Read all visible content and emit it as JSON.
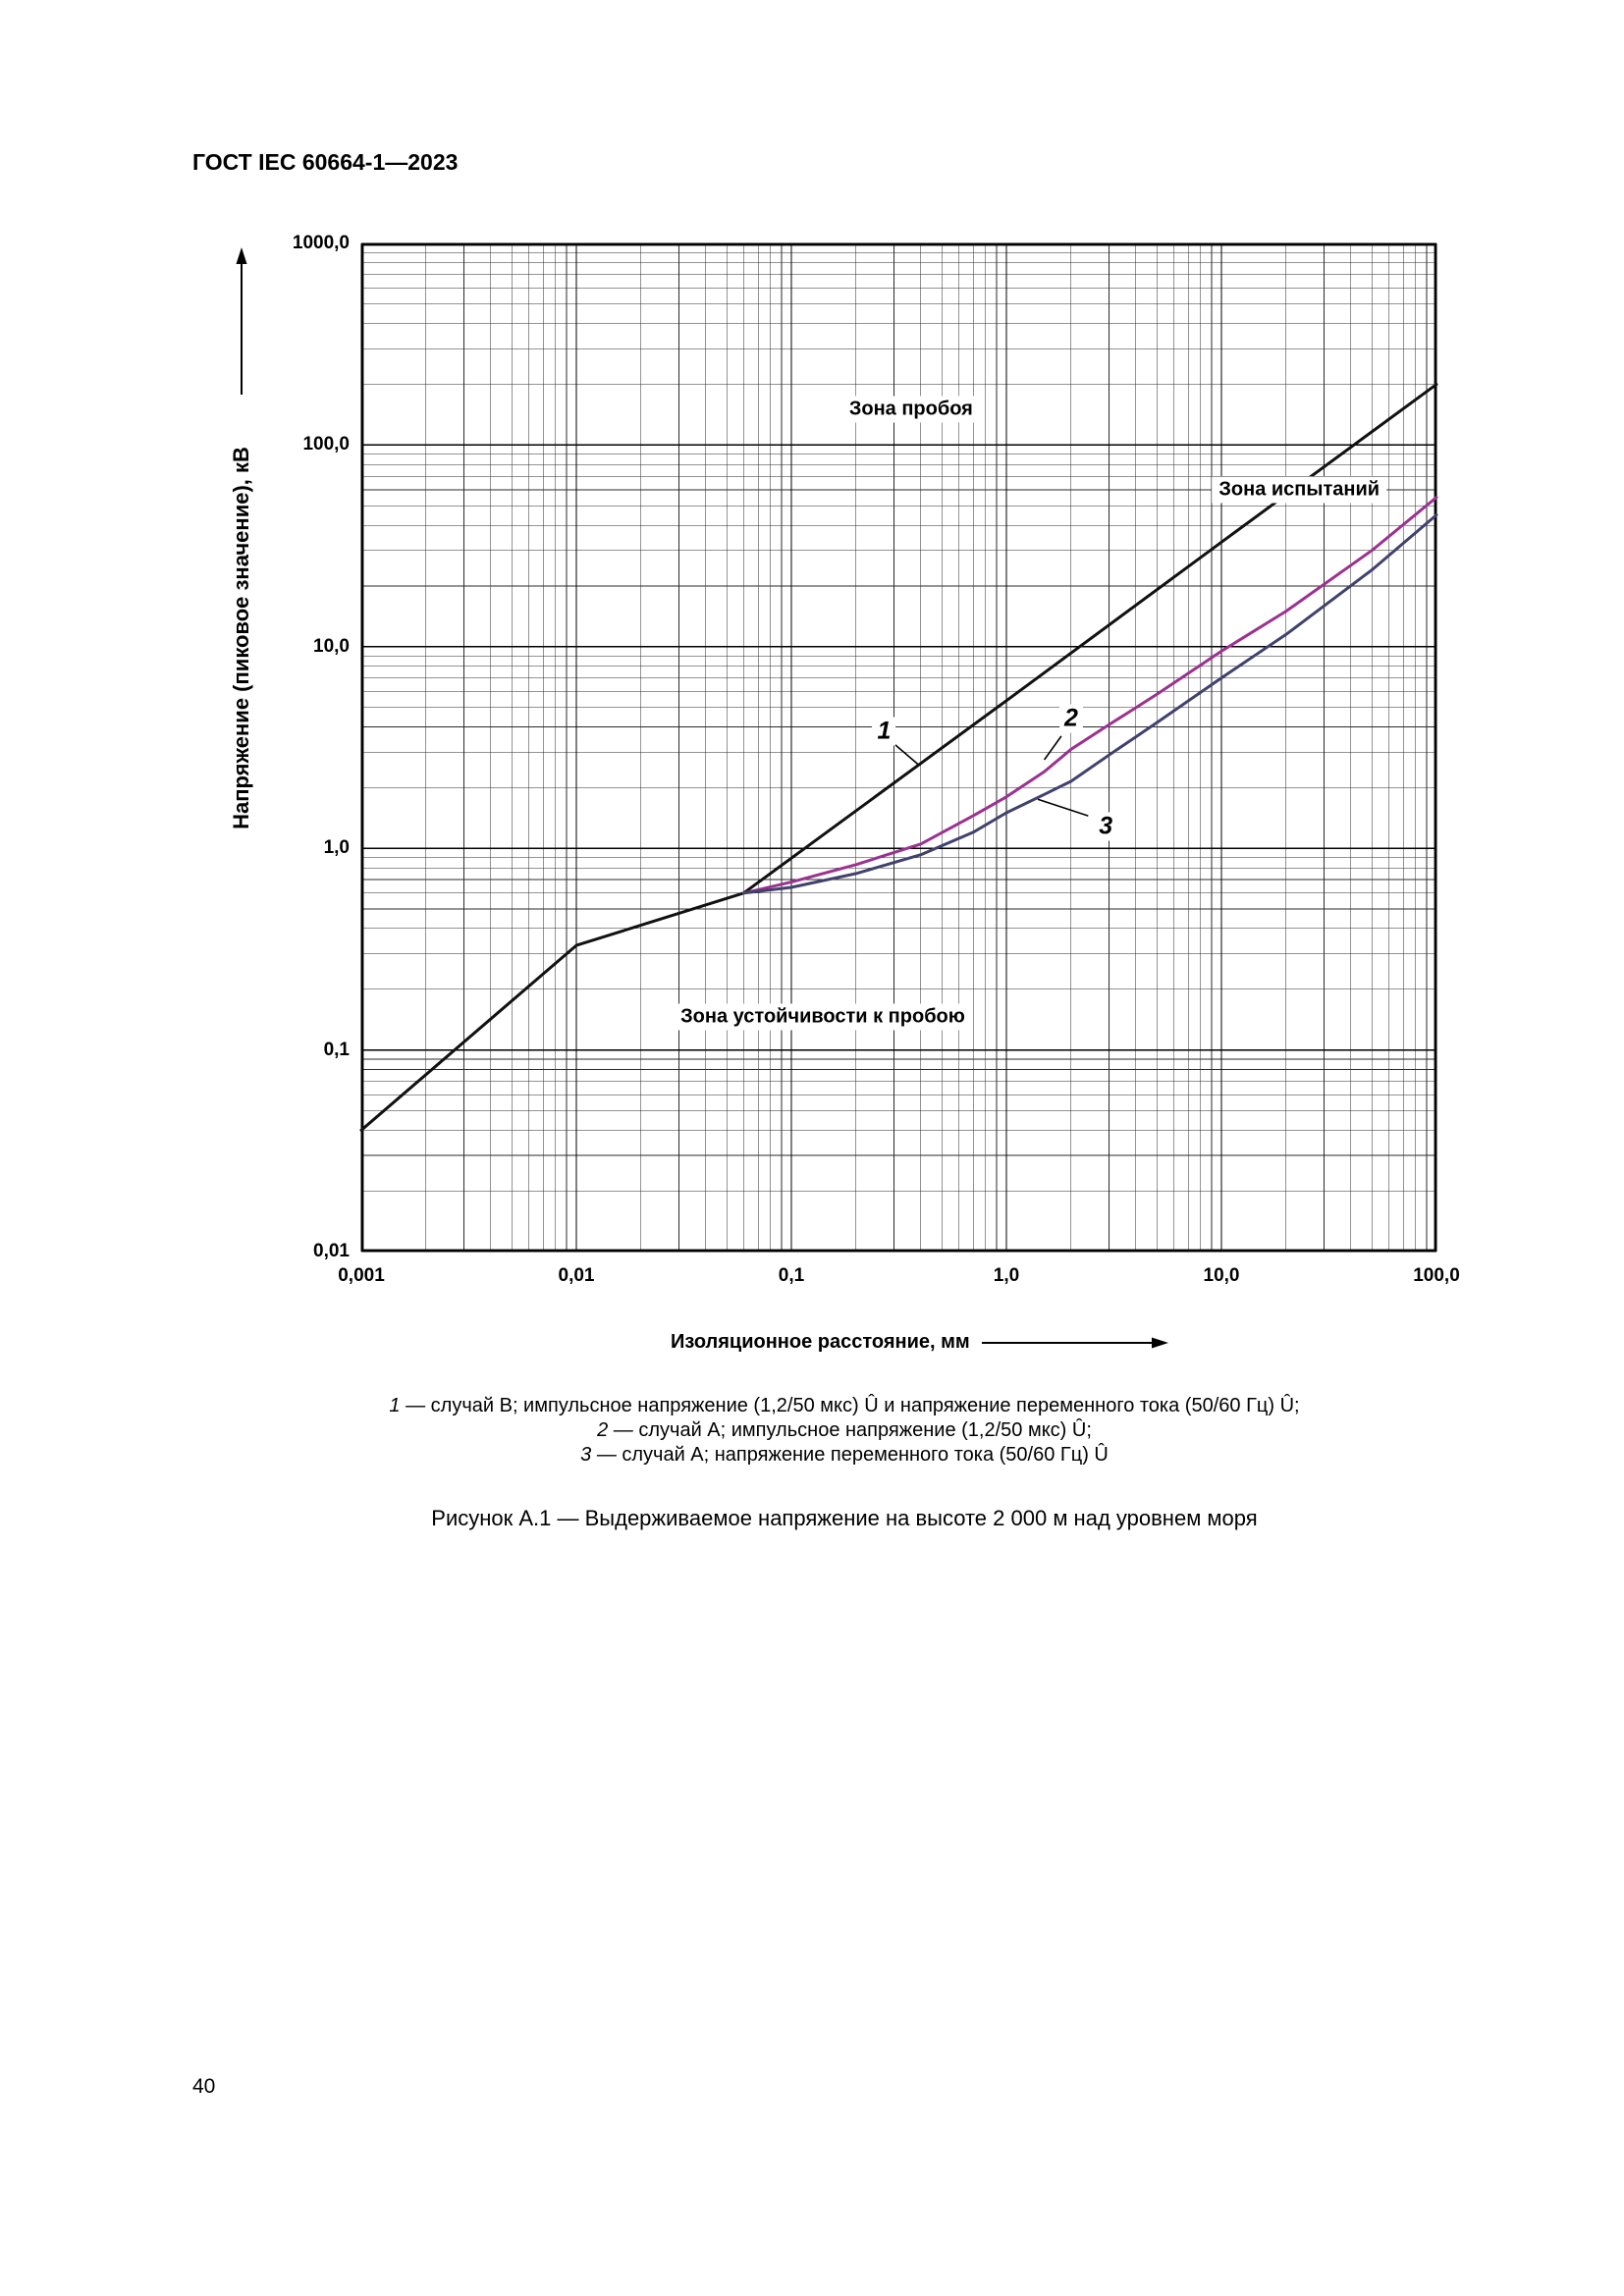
{
  "page": {
    "header": "ГОСТ IEC 60664-1—2023",
    "page_number": "40"
  },
  "figure": {
    "legend": [
      {
        "num": "1",
        "text": "— случай В; импульсное напряжение (1,2/50 мкс) Û и напряжение переменного тока (50/60 Гц) Û;"
      },
      {
        "num": "2",
        "text": "— случай А; импульсное напряжение (1,2/50 мкс) Û;"
      },
      {
        "num": "3",
        "text": "— случай А; напряжение переменного тока (50/60 Гц) Û"
      }
    ],
    "caption": "Рисунок А.1 — Выдерживаемое напряжение на высоте 2 000 м над уровнем моря"
  },
  "chart_data": {
    "type": "line",
    "x_axis": {
      "label": "Изоляционное расстояние, мм",
      "scale": "log",
      "range": [
        0.001,
        100
      ],
      "ticks": [
        "0,001",
        "0,01",
        "0,1",
        "1,0",
        "10,0",
        "100,0"
      ]
    },
    "y_axis": {
      "label": "Напряжение (пиковое значение), кВ",
      "scale": "log",
      "range": [
        0.01,
        1000
      ],
      "ticks": [
        "1000,0",
        "100,0",
        "10,0",
        "1,0",
        "0,1",
        "0,01"
      ]
    },
    "grid": {
      "major": true,
      "minor": true
    },
    "series": [
      {
        "name": "1",
        "label": "случай В; импульсное напряжение (1,2/50 мкс) Û и напряжение переменного тока (50/60 Гц) Û",
        "color": "#111111",
        "points": [
          [
            0.001,
            0.04
          ],
          [
            0.01,
            0.33
          ],
          [
            0.06,
            0.6
          ],
          [
            1.0,
            5.4
          ],
          [
            10,
            33
          ],
          [
            100,
            200
          ]
        ]
      },
      {
        "name": "2",
        "label": "случай А; импульсное напряжение (1,2/50 мкс) Û",
        "color": "#9c3190",
        "points": [
          [
            0.06,
            0.6
          ],
          [
            0.1,
            0.68
          ],
          [
            0.2,
            0.83
          ],
          [
            0.4,
            1.05
          ],
          [
            0.7,
            1.45
          ],
          [
            1.0,
            1.8
          ],
          [
            1.5,
            2.4
          ],
          [
            2.0,
            3.1
          ],
          [
            3,
            4.1
          ],
          [
            5,
            5.8
          ],
          [
            10,
            9.5
          ],
          [
            20,
            15
          ],
          [
            50,
            30
          ],
          [
            100,
            55
          ]
        ]
      },
      {
        "name": "3",
        "label": "случай А; напряжение переменного тока (50/60 Гц) Û",
        "color": "#41416e",
        "points": [
          [
            0.06,
            0.6
          ],
          [
            0.1,
            0.64
          ],
          [
            0.2,
            0.75
          ],
          [
            0.4,
            0.93
          ],
          [
            0.7,
            1.2
          ],
          [
            1.0,
            1.5
          ],
          [
            1.5,
            1.85
          ],
          [
            2.0,
            2.15
          ],
          [
            3,
            2.9
          ],
          [
            5,
            4.2
          ],
          [
            10,
            7.0
          ],
          [
            20,
            11.5
          ],
          [
            50,
            24
          ],
          [
            100,
            45
          ]
        ]
      }
    ],
    "zone_labels": [
      {
        "text": "Зона пробоя",
        "x": 0.36,
        "y": 150
      },
      {
        "text": "Зона испытаний",
        "x": 23,
        "y": 60
      },
      {
        "text": "Зона устойчивости к пробою",
        "x": 0.14,
        "y": 0.145
      }
    ],
    "curve_labels": [
      {
        "text": "1",
        "x": 0.27,
        "y": 3.8,
        "leader": [
          [
            0.3,
            3.3
          ],
          [
            0.39,
            2.6
          ]
        ]
      },
      {
        "text": "2",
        "x": 2.0,
        "y": 4.4,
        "leader": [
          [
            1.8,
            3.6
          ],
          [
            1.5,
            2.75
          ]
        ]
      },
      {
        "text": "3",
        "x": 2.9,
        "y": 1.28,
        "leader": [
          [
            2.4,
            1.45
          ],
          [
            1.4,
            1.75
          ]
        ]
      }
    ]
  }
}
